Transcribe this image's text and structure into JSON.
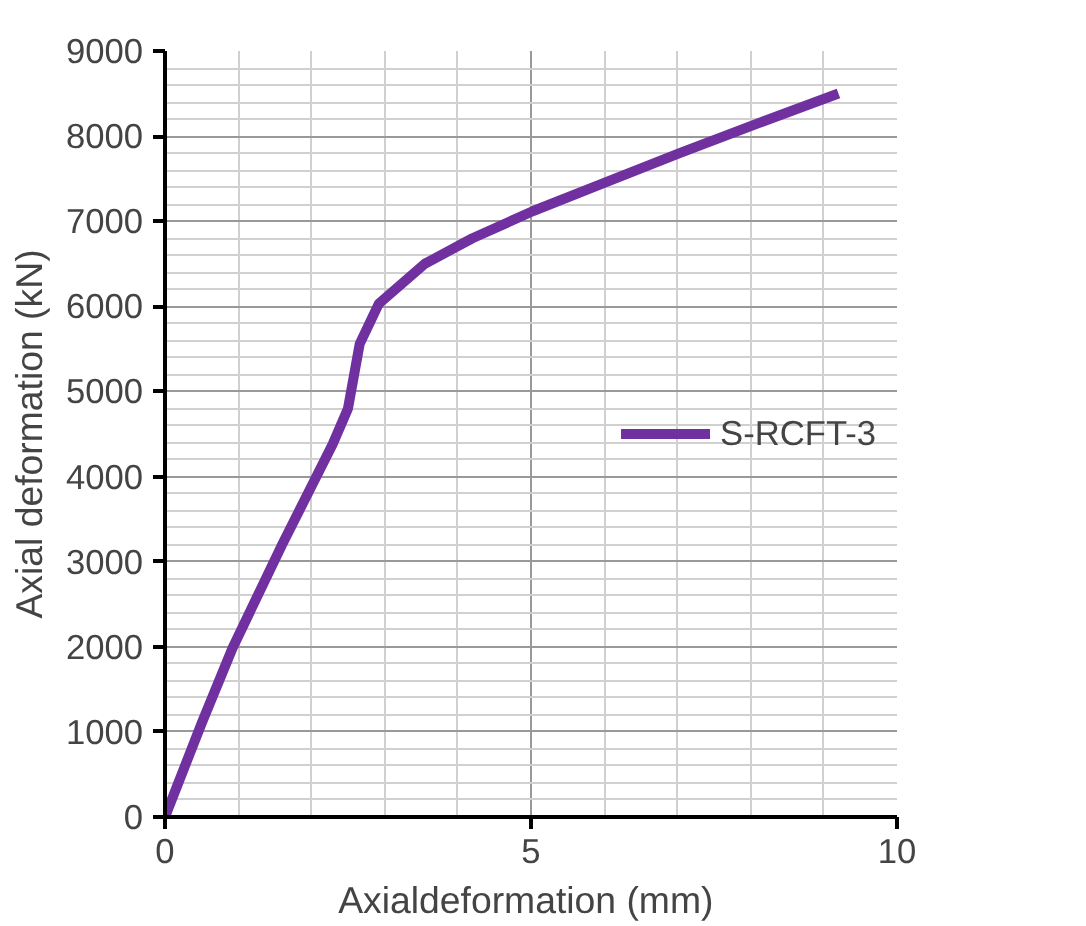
{
  "chart_data": {
    "type": "line",
    "xlabel": "Axialdeformation  (mm)",
    "ylabel": "Axial deformation (kN)",
    "xlim": [
      0,
      10
    ],
    "xticks": [
      0,
      5,
      10
    ],
    "ylim": [
      0,
      9000
    ],
    "yticks": [
      0,
      1000,
      2000,
      3000,
      4000,
      5000,
      6000,
      7000,
      8000,
      9000
    ],
    "grid": true,
    "legend": "right",
    "marker": "none",
    "line_style": "solid",
    "series": [
      {
        "name": "S-RCFT-3",
        "color": "#7030a0",
        "x": [
          0,
          0.5,
          0.92,
          1.6,
          2.29,
          2.5,
          2.66,
          2.92,
          3.55,
          4.2,
          5.03,
          6.0,
          7.03,
          8.1,
          9.2
        ],
        "values": [
          0,
          1100,
          1980,
          3200,
          4380,
          4800,
          5560,
          6030,
          6500,
          6800,
          7120,
          7450,
          7800,
          8150,
          8500
        ]
      }
    ]
  }
}
